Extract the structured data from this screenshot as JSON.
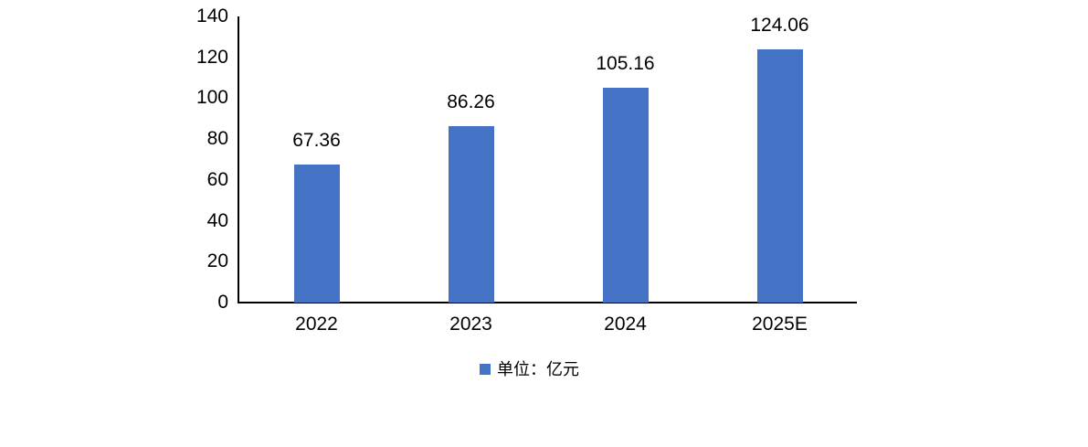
{
  "chart_data": {
    "type": "bar",
    "categories": [
      "2022",
      "2023",
      "2024",
      "2025E"
    ],
    "values": [
      67.36,
      86.26,
      105.16,
      124.06
    ],
    "data_labels": [
      "67.36",
      "86.26",
      "105.16",
      "124.06"
    ],
    "title": "",
    "xlabel": "",
    "ylabel": "",
    "ylim": [
      0,
      140
    ],
    "y_ticks": [
      0,
      20,
      40,
      60,
      80,
      100,
      120,
      140
    ],
    "grid": false,
    "legend_position": "bottom",
    "legend": "单位：亿元",
    "bar_color": "#4472C4",
    "axis_color": "#000000"
  }
}
